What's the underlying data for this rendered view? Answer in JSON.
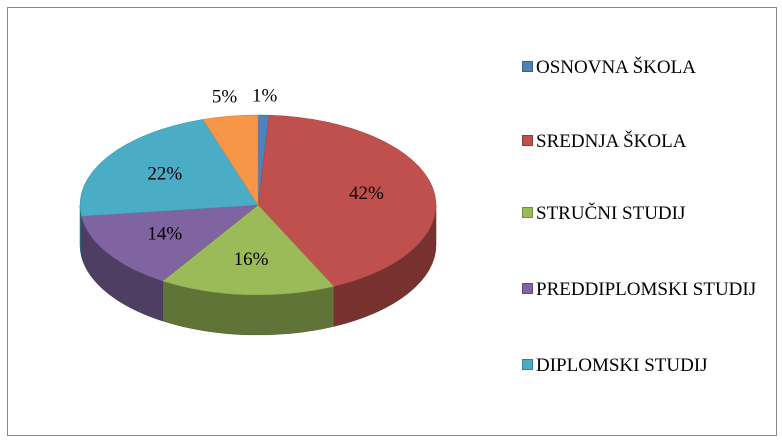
{
  "chart_data": {
    "type": "pie",
    "categories": [
      "OSNOVNA ŠKOLA",
      "SREDNJA ŠKOLA",
      "STRUČNI STUDIJ",
      "PREDDIPLOMSKI STUDIJ",
      "DIPLOMSKI STUDIJ",
      null
    ],
    "values": [
      1,
      42,
      16,
      14,
      22,
      5
    ],
    "value_labels": [
      "1%",
      "42%",
      "16%",
      "14%",
      "22%",
      "5%"
    ],
    "colors": [
      "#4f81bd",
      "#c0504d",
      "#9bbb59",
      "#8064a2",
      "#4bacc6",
      "#f79646"
    ],
    "legend": "right"
  }
}
